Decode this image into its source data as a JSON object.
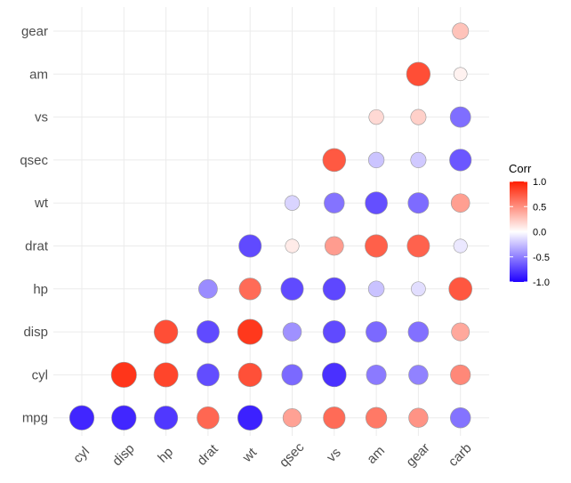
{
  "chart_data": {
    "type": "heatmap",
    "subtype": "lower-triangle correlation bubble plot",
    "variables": [
      "mpg",
      "cyl",
      "disp",
      "hp",
      "drat",
      "wt",
      "qsec",
      "vs",
      "am",
      "gear",
      "carb"
    ],
    "x_tick_labels": [
      "cyl",
      "disp",
      "hp",
      "drat",
      "wt",
      "qsec",
      "vs",
      "am",
      "gear",
      "carb"
    ],
    "y_tick_labels": [
      "mpg",
      "cyl",
      "disp",
      "hp",
      "drat",
      "wt",
      "qsec",
      "vs",
      "am",
      "gear"
    ],
    "cells": [
      {
        "x": "cyl",
        "y": "mpg",
        "value": -0.85
      },
      {
        "x": "disp",
        "y": "mpg",
        "value": -0.85
      },
      {
        "x": "hp",
        "y": "mpg",
        "value": -0.78
      },
      {
        "x": "drat",
        "y": "mpg",
        "value": 0.68
      },
      {
        "x": "wt",
        "y": "mpg",
        "value": -0.87
      },
      {
        "x": "qsec",
        "y": "mpg",
        "value": 0.42
      },
      {
        "x": "vs",
        "y": "mpg",
        "value": 0.66
      },
      {
        "x": "am",
        "y": "mpg",
        "value": 0.6
      },
      {
        "x": "gear",
        "y": "mpg",
        "value": 0.48
      },
      {
        "x": "carb",
        "y": "mpg",
        "value": -0.55
      },
      {
        "x": "disp",
        "y": "cyl",
        "value": 0.9
      },
      {
        "x": "hp",
        "y": "cyl",
        "value": 0.83
      },
      {
        "x": "drat",
        "y": "cyl",
        "value": -0.7
      },
      {
        "x": "wt",
        "y": "cyl",
        "value": 0.78
      },
      {
        "x": "qsec",
        "y": "cyl",
        "value": -0.59
      },
      {
        "x": "vs",
        "y": "cyl",
        "value": -0.81
      },
      {
        "x": "am",
        "y": "cyl",
        "value": -0.52
      },
      {
        "x": "gear",
        "y": "cyl",
        "value": -0.49
      },
      {
        "x": "carb",
        "y": "cyl",
        "value": 0.53
      },
      {
        "x": "hp",
        "y": "disp",
        "value": 0.79
      },
      {
        "x": "drat",
        "y": "disp",
        "value": -0.71
      },
      {
        "x": "wt",
        "y": "disp",
        "value": 0.89
      },
      {
        "x": "qsec",
        "y": "disp",
        "value": -0.43
      },
      {
        "x": "vs",
        "y": "disp",
        "value": -0.71
      },
      {
        "x": "am",
        "y": "disp",
        "value": -0.59
      },
      {
        "x": "gear",
        "y": "disp",
        "value": -0.56
      },
      {
        "x": "carb",
        "y": "disp",
        "value": 0.39
      },
      {
        "x": "drat",
        "y": "hp",
        "value": -0.45
      },
      {
        "x": "wt",
        "y": "hp",
        "value": 0.66
      },
      {
        "x": "qsec",
        "y": "hp",
        "value": -0.71
      },
      {
        "x": "vs",
        "y": "hp",
        "value": -0.72
      },
      {
        "x": "am",
        "y": "hp",
        "value": -0.24
      },
      {
        "x": "gear",
        "y": "hp",
        "value": -0.13
      },
      {
        "x": "carb",
        "y": "hp",
        "value": 0.75
      },
      {
        "x": "wt",
        "y": "drat",
        "value": -0.71
      },
      {
        "x": "qsec",
        "y": "drat",
        "value": 0.09
      },
      {
        "x": "vs",
        "y": "drat",
        "value": 0.44
      },
      {
        "x": "am",
        "y": "drat",
        "value": 0.71
      },
      {
        "x": "gear",
        "y": "drat",
        "value": 0.7
      },
      {
        "x": "carb",
        "y": "drat",
        "value": -0.09
      },
      {
        "x": "qsec",
        "y": "wt",
        "value": -0.17
      },
      {
        "x": "vs",
        "y": "wt",
        "value": -0.55
      },
      {
        "x": "am",
        "y": "wt",
        "value": -0.69
      },
      {
        "x": "gear",
        "y": "wt",
        "value": -0.58
      },
      {
        "x": "carb",
        "y": "wt",
        "value": 0.43
      },
      {
        "x": "vs",
        "y": "qsec",
        "value": 0.74
      },
      {
        "x": "am",
        "y": "qsec",
        "value": -0.23
      },
      {
        "x": "gear",
        "y": "qsec",
        "value": -0.21
      },
      {
        "x": "carb",
        "y": "qsec",
        "value": -0.66
      },
      {
        "x": "am",
        "y": "vs",
        "value": 0.17
      },
      {
        "x": "gear",
        "y": "vs",
        "value": 0.21
      },
      {
        "x": "carb",
        "y": "vs",
        "value": -0.57
      },
      {
        "x": "gear",
        "y": "am",
        "value": 0.79
      },
      {
        "x": "carb",
        "y": "am",
        "value": 0.06
      },
      {
        "x": "carb",
        "y": "gear",
        "value": 0.27
      }
    ],
    "legend": {
      "title": "Corr",
      "position": "right",
      "ticks": [
        "1.0",
        "0.5",
        "0.0",
        "-0.5",
        "-1.0"
      ],
      "tick_values": [
        1.0,
        0.5,
        0.0,
        -0.5,
        -1.0
      ],
      "range": [
        -1.0,
        1.0
      ],
      "low_color": "#1f00ff",
      "mid_color": "#ffffff",
      "high_color": "#ff1f00"
    },
    "marker": "circle",
    "size_encodes": "absolute correlation",
    "grid": true,
    "xlabel": "",
    "ylabel": "",
    "x_tick_rotation_deg": 45
  }
}
